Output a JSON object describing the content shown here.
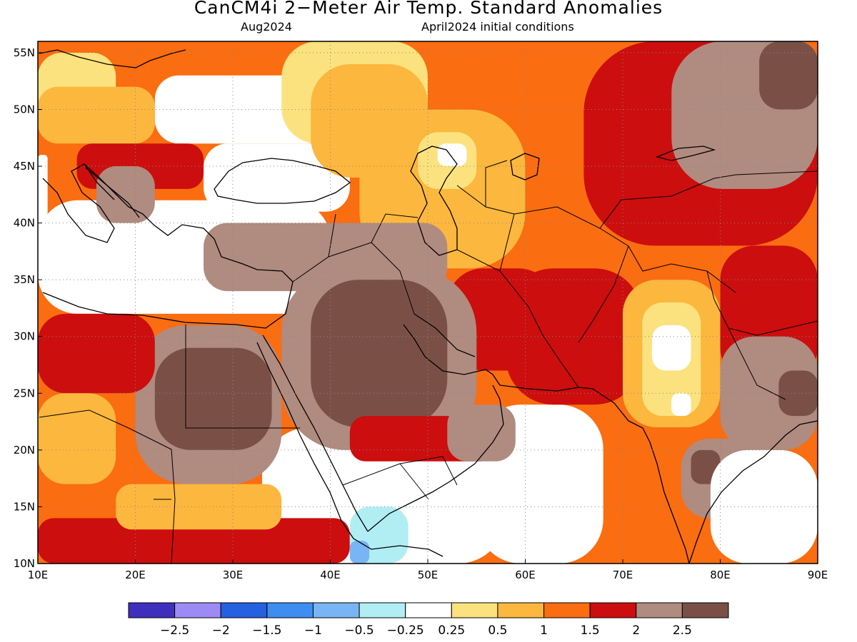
{
  "header": {
    "title": "CanCM4i 2−Meter Air Temp. Standard Anomalies",
    "valid_month": "Aug2024",
    "init_conditions": "April2024 initial conditions"
  },
  "map": {
    "lon_range": [
      10,
      90
    ],
    "lat_range": [
      10,
      56
    ],
    "x_ticks": [
      {
        "value": 10,
        "label": "10E"
      },
      {
        "value": 20,
        "label": "20E"
      },
      {
        "value": 30,
        "label": "30E"
      },
      {
        "value": 40,
        "label": "40E"
      },
      {
        "value": 50,
        "label": "50E"
      },
      {
        "value": 60,
        "label": "60E"
      },
      {
        "value": 70,
        "label": "70E"
      },
      {
        "value": 80,
        "label": "80E"
      },
      {
        "value": 90,
        "label": "90E"
      }
    ],
    "y_ticks": [
      {
        "value": 10,
        "label": "10N"
      },
      {
        "value": 15,
        "label": "15N"
      },
      {
        "value": 20,
        "label": "20N"
      },
      {
        "value": 25,
        "label": "25N"
      },
      {
        "value": 30,
        "label": "30N"
      },
      {
        "value": 35,
        "label": "35N"
      },
      {
        "value": 40,
        "label": "40N"
      },
      {
        "value": 45,
        "label": "45N"
      },
      {
        "value": 50,
        "label": "50N"
      },
      {
        "value": 55,
        "label": "55N"
      }
    ],
    "grid": true
  },
  "colorbar": {
    "colors": [
      "#3f2fbd",
      "#9d8bf5",
      "#2460e0",
      "#3d8ef0",
      "#79b5f4",
      "#b0eef4",
      "#ffffff",
      "#fbe27e",
      "#fcb73e",
      "#fa6d10",
      "#cc0e0e",
      "#b08b80",
      "#7a5046"
    ],
    "labels": [
      "−2.5",
      "−2",
      "−1.5",
      "−1",
      "−0.5",
      "−0.25",
      "0.25",
      "0.5",
      "1",
      "1.5",
      "2",
      "2.5"
    ]
  },
  "regions": [
    {
      "color": "#fa6d10",
      "lon": [
        10,
        90
      ],
      "lat": [
        10,
        56
      ]
    },
    {
      "color": "#ffffff",
      "lon": [
        33,
        58
      ],
      "lat": [
        10,
        22
      ]
    },
    {
      "color": "#ffffff",
      "lon": [
        55,
        68
      ],
      "lat": [
        10,
        24
      ]
    },
    {
      "color": "#ffffff",
      "lon": [
        10,
        40
      ],
      "lat": [
        32,
        42
      ]
    },
    {
      "color": "#ffffff",
      "lon": [
        27,
        42
      ],
      "lat": [
        41,
        47
      ]
    },
    {
      "color": "#ffffff",
      "lon": [
        22,
        40
      ],
      "lat": [
        47,
        53
      ]
    },
    {
      "color": "#ffffff",
      "lon": [
        10,
        11
      ],
      "lat": [
        38,
        46
      ]
    },
    {
      "color": "#fbe27e",
      "lon": [
        35,
        50
      ],
      "lat": [
        47,
        56
      ]
    },
    {
      "color": "#fcb73e",
      "lon": [
        38,
        50
      ],
      "lat": [
        44,
        54
      ]
    },
    {
      "color": "#fbe27e",
      "lon": [
        10,
        18
      ],
      "lat": [
        49,
        55
      ]
    },
    {
      "color": "#fcb73e",
      "lon": [
        10,
        22
      ],
      "lat": [
        47,
        52
      ]
    },
    {
      "color": "#cc0e0e",
      "lon": [
        14,
        27
      ],
      "lat": [
        43,
        47
      ]
    },
    {
      "color": "#b08b80",
      "lon": [
        16,
        22
      ],
      "lat": [
        40,
        45
      ]
    },
    {
      "color": "#cc0e0e",
      "lon": [
        66,
        90
      ],
      "lat": [
        38,
        56
      ]
    },
    {
      "color": "#b08b80",
      "lon": [
        75,
        90
      ],
      "lat": [
        43,
        56
      ]
    },
    {
      "color": "#7a5046",
      "lon": [
        84,
        90
      ],
      "lat": [
        50,
        56
      ]
    },
    {
      "color": "#fcb73e",
      "lon": [
        43,
        60
      ],
      "lat": [
        36,
        50
      ]
    },
    {
      "color": "#fbe27e",
      "lon": [
        49,
        55
      ],
      "lat": [
        43,
        48
      ]
    },
    {
      "color": "#ffffff",
      "lon": [
        51,
        54
      ],
      "lat": [
        45,
        47
      ]
    },
    {
      "color": "#cc0e0e",
      "lon": [
        52,
        63
      ],
      "lat": [
        27,
        36
      ]
    },
    {
      "color": "#b08b80",
      "lon": [
        27,
        52
      ],
      "lat": [
        34,
        40
      ]
    },
    {
      "color": "#b08b80",
      "lon": [
        35,
        55
      ],
      "lat": [
        20,
        36
      ]
    },
    {
      "color": "#7a5046",
      "lon": [
        38,
        52
      ],
      "lat": [
        22,
        35
      ]
    },
    {
      "color": "#cc0e0e",
      "lon": [
        42,
        57
      ],
      "lat": [
        19,
        23
      ]
    },
    {
      "color": "#b08b80",
      "lon": [
        52,
        59
      ],
      "lat": [
        19,
        24
      ]
    },
    {
      "color": "#b08b80",
      "lon": [
        20,
        35
      ],
      "lat": [
        17,
        31
      ]
    },
    {
      "color": "#7a5046",
      "lon": [
        22,
        34
      ],
      "lat": [
        20,
        29
      ]
    },
    {
      "color": "#cc0e0e",
      "lon": [
        10,
        22
      ],
      "lat": [
        25,
        32
      ]
    },
    {
      "color": "#fcb73e",
      "lon": [
        10,
        18
      ],
      "lat": [
        17,
        25
      ]
    },
    {
      "color": "#cc0e0e",
      "lon": [
        10,
        42
      ],
      "lat": [
        10,
        14
      ]
    },
    {
      "color": "#fcb73e",
      "lon": [
        18,
        35
      ],
      "lat": [
        13,
        17
      ]
    },
    {
      "color": "#cc0e0e",
      "lon": [
        58,
        72
      ],
      "lat": [
        24,
        36
      ]
    },
    {
      "color": "#cc0e0e",
      "lon": [
        80,
        90
      ],
      "lat": [
        26,
        38
      ]
    },
    {
      "color": "#b08b80",
      "lon": [
        80,
        90
      ],
      "lat": [
        20,
        30
      ]
    },
    {
      "color": "#7a5046",
      "lon": [
        86,
        90
      ],
      "lat": [
        23,
        27
      ]
    },
    {
      "color": "#fcb73e",
      "lon": [
        70,
        80
      ],
      "lat": [
        22,
        35
      ]
    },
    {
      "color": "#fbe27e",
      "lon": [
        72,
        78
      ],
      "lat": [
        23,
        33
      ]
    },
    {
      "color": "#ffffff",
      "lon": [
        73,
        77
      ],
      "lat": [
        27,
        31
      ]
    },
    {
      "color": "#ffffff",
      "lon": [
        75,
        77
      ],
      "lat": [
        23,
        25
      ]
    },
    {
      "color": "#b08b80",
      "lon": [
        76,
        85
      ],
      "lat": [
        14,
        21
      ]
    },
    {
      "color": "#7a5046",
      "lon": [
        77,
        80
      ],
      "lat": [
        17,
        20
      ]
    },
    {
      "color": "#fa6d10",
      "lon": [
        76,
        79
      ],
      "lat": [
        10,
        14
      ]
    },
    {
      "color": "#ffffff",
      "lon": [
        79,
        90
      ],
      "lat": [
        10,
        20
      ]
    },
    {
      "color": "#b0eef4",
      "lon": [
        42,
        48
      ],
      "lat": [
        10,
        15
      ]
    },
    {
      "color": "#79b5f4",
      "lon": [
        42,
        44
      ],
      "lat": [
        10,
        12
      ]
    }
  ]
}
